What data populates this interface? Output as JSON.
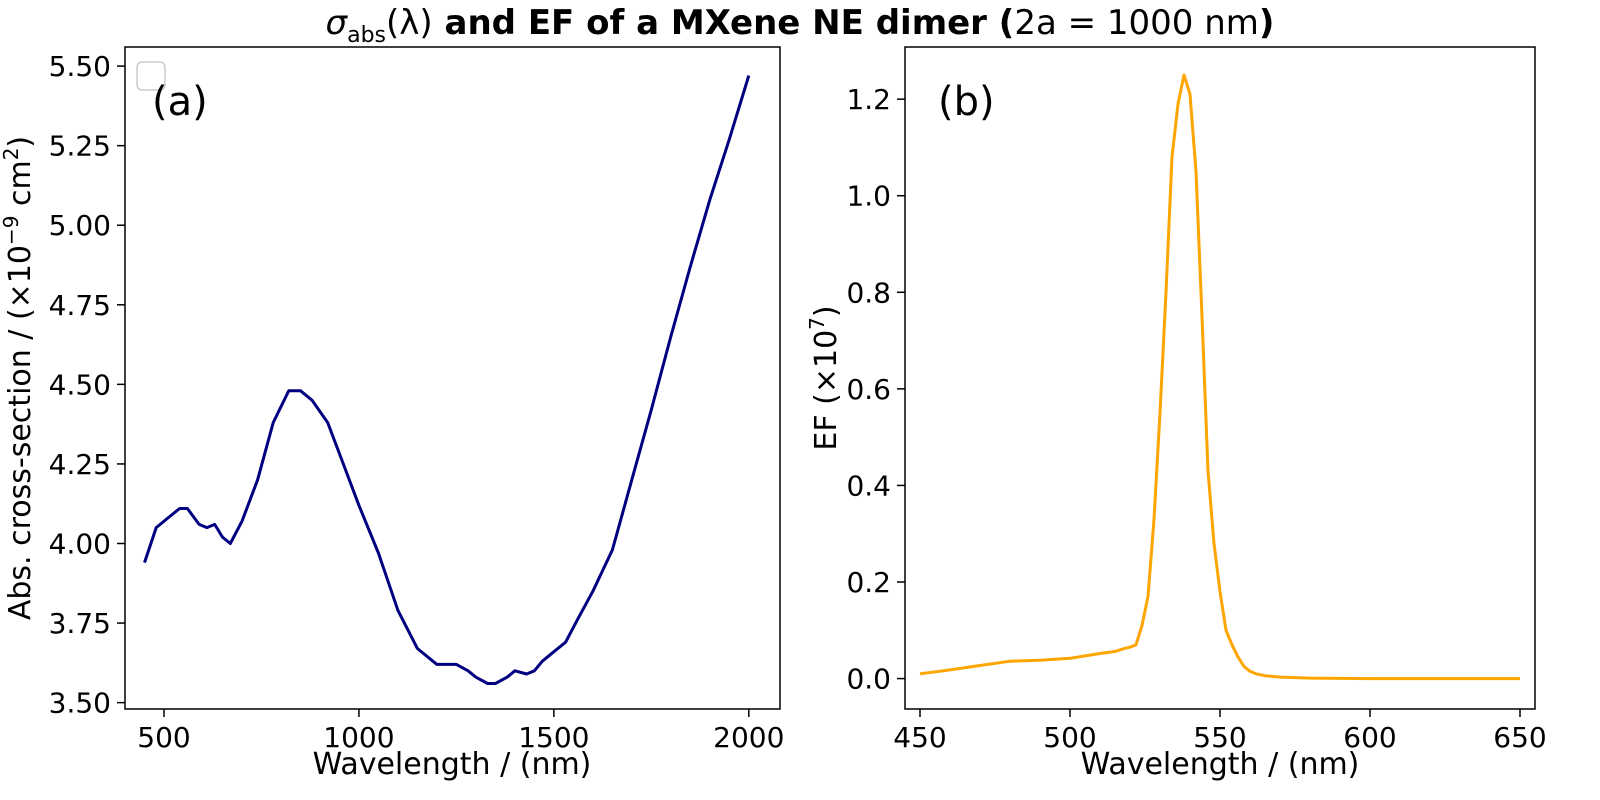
{
  "figure": {
    "title_sigma": "σ",
    "title_sub": "abs",
    "title_arg": "(λ)",
    "title_bold": " and EF of a MXene NE dimer (",
    "title_expr": "2a = 1000 nm",
    "title_close": ")"
  },
  "chart_data": [
    {
      "type": "line",
      "panel_label": "(a)",
      "xlabel": "Wavelength / (nm)",
      "ylabel_main": "Abs. cross-section / (×10",
      "ylabel_exp1": "−9",
      "ylabel_mid": " cm",
      "ylabel_exp2": "2",
      "ylabel_close": ")",
      "xlim": [
        400,
        2080
      ],
      "ylim": [
        3.48,
        5.56
      ],
      "xticks": [
        500,
        1000,
        1500,
        2000
      ],
      "yticks": [
        3.5,
        3.75,
        4.0,
        4.25,
        4.5,
        4.75,
        5.0,
        5.25,
        5.5
      ],
      "ytick_labels": [
        "3.50",
        "3.75",
        "4.00",
        "4.25",
        "4.50",
        "4.75",
        "5.00",
        "5.25",
        "5.50"
      ],
      "legend": "empty legend box, top-left",
      "series": [
        {
          "color": "#000080",
          "x": [
            450,
            480,
            510,
            540,
            560,
            590,
            610,
            630,
            650,
            670,
            700,
            740,
            780,
            820,
            850,
            880,
            920,
            960,
            1000,
            1050,
            1100,
            1150,
            1200,
            1250,
            1280,
            1300,
            1330,
            1350,
            1380,
            1400,
            1430,
            1450,
            1470,
            1500,
            1530,
            1560,
            1600,
            1650,
            1700,
            1750,
            1800,
            1850,
            1900,
            1950,
            2000
          ],
          "y": [
            3.94,
            4.05,
            4.08,
            4.11,
            4.11,
            4.06,
            4.05,
            4.06,
            4.02,
            4.0,
            4.07,
            4.2,
            4.38,
            4.48,
            4.48,
            4.45,
            4.38,
            4.25,
            4.12,
            3.97,
            3.79,
            3.67,
            3.62,
            3.62,
            3.6,
            3.58,
            3.56,
            3.56,
            3.58,
            3.6,
            3.59,
            3.6,
            3.63,
            3.66,
            3.69,
            3.76,
            3.85,
            3.98,
            4.2,
            4.42,
            4.65,
            4.87,
            5.08,
            5.27,
            5.47
          ]
        }
      ]
    },
    {
      "type": "line",
      "panel_label": "(b)",
      "xlabel": "Wavelength / (nm)",
      "ylabel_main": "EF (×10",
      "ylabel_exp": "7",
      "ylabel_close": ")",
      "xlim": [
        445,
        655
      ],
      "ylim": [
        -0.063,
        1.308
      ],
      "xticks": [
        450,
        500,
        550,
        600,
        650
      ],
      "yticks": [
        0.0,
        0.2,
        0.4,
        0.6,
        0.8,
        1.0,
        1.2
      ],
      "ytick_labels": [
        "0.0",
        "0.2",
        "0.4",
        "0.6",
        "0.8",
        "1.0",
        "1.2"
      ],
      "series": [
        {
          "color": "#FFA500",
          "x": [
            450,
            460,
            470,
            480,
            490,
            500,
            505,
            510,
            515,
            518,
            520,
            522,
            524,
            526,
            528,
            530,
            532,
            534,
            536,
            538,
            540,
            542,
            544,
            546,
            548,
            550,
            552,
            554,
            556,
            558,
            560,
            562,
            565,
            570,
            580,
            600,
            620,
            650
          ],
          "y": [
            0.01,
            0.018,
            0.027,
            0.036,
            0.038,
            0.042,
            0.047,
            0.052,
            0.056,
            0.062,
            0.065,
            0.07,
            0.11,
            0.17,
            0.33,
            0.55,
            0.8,
            1.08,
            1.19,
            1.25,
            1.21,
            1.05,
            0.75,
            0.43,
            0.28,
            0.18,
            0.1,
            0.07,
            0.045,
            0.025,
            0.015,
            0.01,
            0.006,
            0.003,
            0.001,
            0.0,
            0.0,
            0.0
          ]
        }
      ]
    }
  ]
}
